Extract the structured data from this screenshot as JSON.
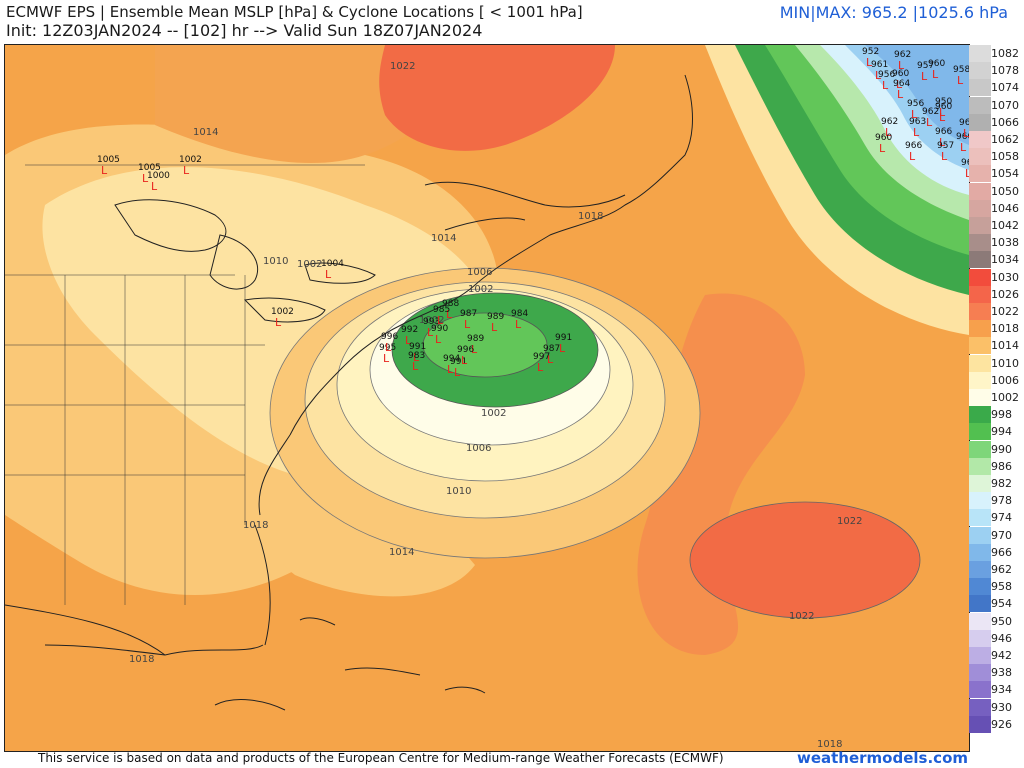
{
  "header": {
    "title_line1": "ECMWF EPS | Ensemble Mean MSLP [hPa] & Cyclone Locations [ < 1001 hPa]",
    "title_line2": "Init: 12Z03JAN2024 -- [102] hr --> Valid Sun 18Z07JAN2024",
    "minmax": "MIN|MAX: 965.2 |1025.6 hPa"
  },
  "footer": {
    "credit": "This service is based on data and products of the European Centre for Medium-range Weather Forecasts (ECMWF)",
    "site": "weathermodels.com"
  },
  "legend": [
    {
      "label": "1082",
      "color": "#dcdcdc"
    },
    {
      "label": "1078",
      "color": "#d2d2d2"
    },
    {
      "label": "1074",
      "color": "#c8c8c8"
    },
    {
      "label": "1070",
      "color": "#bcbcbc"
    },
    {
      "label": "1066",
      "color": "#b0b0b0"
    },
    {
      "label": "1062",
      "color": "#f0c8c8"
    },
    {
      "label": "1058",
      "color": "#ecc0bc"
    },
    {
      "label": "1054",
      "color": "#e6b2ac"
    },
    {
      "label": "1050",
      "color": "#e2aaa4"
    },
    {
      "label": "1046",
      "color": "#d6a6a0"
    },
    {
      "label": "1042",
      "color": "#c6a09a"
    },
    {
      "label": "1038",
      "color": "#a88e8a"
    },
    {
      "label": "1034",
      "color": "#8c7a78"
    },
    {
      "label": "1030",
      "color": "#f24c3c"
    },
    {
      "label": "1026",
      "color": "#f4654a"
    },
    {
      "label": "1022",
      "color": "#f67e52"
    },
    {
      "label": "1018",
      "color": "#f7a04c"
    },
    {
      "label": "1014",
      "color": "#fbc068"
    },
    {
      "label": "1010",
      "color": "#fde4a0"
    },
    {
      "label": "1006",
      "color": "#fff5c8"
    },
    {
      "label": "1002",
      "color": "#fffde8"
    },
    {
      "label": "998",
      "color": "#3aaa4a"
    },
    {
      "label": "994",
      "color": "#52c050"
    },
    {
      "label": "990",
      "color": "#7ed67a"
    },
    {
      "label": "986",
      "color": "#b2e8a8"
    },
    {
      "label": "982",
      "color": "#def5d8"
    },
    {
      "label": "978",
      "color": "#d8f2fc"
    },
    {
      "label": "974",
      "color": "#b8e4f8"
    },
    {
      "label": "970",
      "color": "#9cd0f2"
    },
    {
      "label": "966",
      "color": "#80b8ea"
    },
    {
      "label": "962",
      "color": "#6aa0e0"
    },
    {
      "label": "958",
      "color": "#5088d4"
    },
    {
      "label": "954",
      "color": "#4276c8"
    },
    {
      "label": "950",
      "color": "#ebe6f5"
    },
    {
      "label": "946",
      "color": "#d6cdee"
    },
    {
      "label": "942",
      "color": "#bcaee4"
    },
    {
      "label": "938",
      "color": "#a08ed8"
    },
    {
      "label": "934",
      "color": "#8a72cc"
    },
    {
      "label": "930",
      "color": "#7660c0"
    },
    {
      "label": "926",
      "color": "#6650b4"
    }
  ],
  "map": {
    "isobar_labels": [
      "1022",
      "1014",
      "1014",
      "1010",
      "1002",
      "1002",
      "1006",
      "1002",
      "1002",
      "1006",
      "1010",
      "1014",
      "1018",
      "1018",
      "1022",
      "1022",
      "1018",
      "1018"
    ],
    "colors": {
      "bg": "#f5a449",
      "high": "#f26b45",
      "mid": "#fac877",
      "light": "#fde3a2",
      "pale": "#fff3c0",
      "low1": "#3ea84b",
      "low2": "#62c659",
      "blue": "#8fbce8",
      "outline": "#222222"
    },
    "cyclones": [
      {
        "label": "1005"
      },
      {
        "label": "1005"
      },
      {
        "label": "1000"
      },
      {
        "label": "1002"
      },
      {
        "label": "1004"
      },
      {
        "label": "1002"
      },
      {
        "label": "995"
      },
      {
        "label": "996"
      },
      {
        "label": "992"
      },
      {
        "label": "991"
      },
      {
        "label": "983"
      },
      {
        "label": "988"
      },
      {
        "label": "993"
      },
      {
        "label": "990"
      },
      {
        "label": "989"
      },
      {
        "label": "994"
      },
      {
        "label": "991"
      },
      {
        "label": "985"
      },
      {
        "label": "987"
      },
      {
        "label": "989"
      },
      {
        "label": "996"
      },
      {
        "label": "984"
      },
      {
        "label": "987"
      },
      {
        "label": "997"
      },
      {
        "label": "991"
      },
      {
        "label": "952"
      },
      {
        "label": "962"
      },
      {
        "label": "961"
      },
      {
        "label": "956"
      },
      {
        "label": "960"
      },
      {
        "label": "964"
      },
      {
        "label": "957"
      },
      {
        "label": "960"
      },
      {
        "label": "958"
      },
      {
        "label": "962"
      },
      {
        "label": "963"
      },
      {
        "label": "966"
      },
      {
        "label": "960"
      },
      {
        "label": "966"
      },
      {
        "label": "957"
      },
      {
        "label": "960"
      },
      {
        "label": "962"
      },
      {
        "label": "961"
      },
      {
        "label": "962"
      },
      {
        "label": "960"
      },
      {
        "label": "956"
      },
      {
        "label": "950"
      }
    ]
  }
}
